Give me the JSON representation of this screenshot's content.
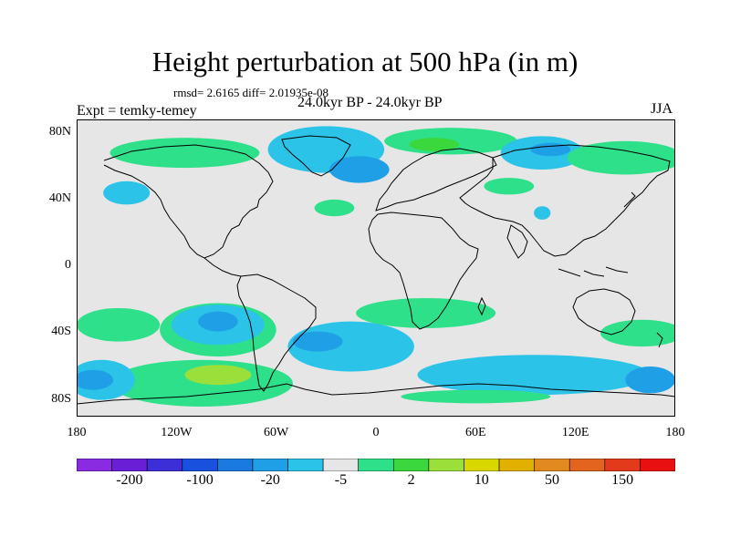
{
  "title": "Height perturbation at 500 hPa (in m)",
  "stats": "rmsd= 2.6165 diff= 2.01935e-08",
  "experiment": "Expt = temky-temey",
  "period": "24.0kyr BP - 24.0kyr BP",
  "season": "JJA",
  "lat_labels": [
    {
      "lat": 80,
      "label": "80N"
    },
    {
      "lat": 40,
      "label": "40N"
    },
    {
      "lat": 0,
      "label": "0"
    },
    {
      "lat": -40,
      "label": "40S"
    },
    {
      "lat": -80,
      "label": "80S"
    }
  ],
  "lon_labels": [
    {
      "lon": -180,
      "label": "180"
    },
    {
      "lon": -120,
      "label": "120W"
    },
    {
      "lon": -60,
      "label": "60W"
    },
    {
      "lon": 0,
      "label": "0"
    },
    {
      "lon": 60,
      "label": "60E"
    },
    {
      "lon": 120,
      "label": "120E"
    },
    {
      "lon": 180,
      "label": "180"
    }
  ],
  "colorbar": {
    "colors": [
      "#8a2be2",
      "#6a1fd6",
      "#3c2fd8",
      "#1a50de",
      "#1a7ae0",
      "#1fa0e6",
      "#2bc4e8",
      "#e6e6e6",
      "#2fe08a",
      "#3ad83c",
      "#9be03a",
      "#d8d800",
      "#e2b000",
      "#e28a1f",
      "#e2641f",
      "#e23a1a",
      "#e81010"
    ],
    "labels": [
      {
        "edge": 1,
        "text": "-200"
      },
      {
        "edge": 3,
        "text": "-100"
      },
      {
        "edge": 5,
        "text": "-20"
      },
      {
        "edge": 7,
        "text": "-5"
      },
      {
        "edge": 9,
        "text": "2"
      },
      {
        "edge": 11,
        "text": "10"
      },
      {
        "edge": 13,
        "text": "50"
      },
      {
        "edge": 15,
        "text": "150"
      }
    ]
  },
  "anomaly_regions": [
    {
      "level": "pos-low",
      "color": "#2fe08a",
      "lon": -115,
      "lat": 68,
      "rlon": 45,
      "rlat": 9
    },
    {
      "level": "pos-low",
      "color": "#2fe08a",
      "lon": -25,
      "lat": 35,
      "rlon": 12,
      "rlat": 5
    },
    {
      "level": "neg-low",
      "color": "#2bc4e8",
      "lon": -30,
      "lat": 70,
      "rlon": 35,
      "rlat": 14
    },
    {
      "level": "neg-mid",
      "color": "#1fa0e6",
      "lon": -10,
      "lat": 58,
      "rlon": 18,
      "rlat": 8
    },
    {
      "level": "pos-low",
      "color": "#2fe08a",
      "lon": 45,
      "lat": 75,
      "rlon": 40,
      "rlat": 8
    },
    {
      "level": "pos-mid",
      "color": "#3ad83c",
      "lon": 35,
      "lat": 73,
      "rlon": 15,
      "rlat": 4
    },
    {
      "level": "neg-low",
      "color": "#2bc4e8",
      "lon": 100,
      "lat": 68,
      "rlon": 25,
      "rlat": 10
    },
    {
      "level": "neg-mid",
      "color": "#1fa0e6",
      "lon": 105,
      "lat": 70,
      "rlon": 12,
      "rlat": 4
    },
    {
      "level": "pos-low",
      "color": "#2fe08a",
      "lon": 150,
      "lat": 65,
      "rlon": 35,
      "rlat": 10
    },
    {
      "level": "pos-low",
      "color": "#2fe08a",
      "lon": 80,
      "lat": 48,
      "rlon": 15,
      "rlat": 5
    },
    {
      "level": "neg-low",
      "color": "#2bc4e8",
      "lon": -150,
      "lat": 44,
      "rlon": 14,
      "rlat": 7
    },
    {
      "level": "neg-low",
      "color": "#2bc4e8",
      "lon": 100,
      "lat": 32,
      "rlon": 5,
      "rlat": 4
    },
    {
      "level": "pos-low",
      "color": "#2fe08a",
      "lon": -155,
      "lat": -35,
      "rlon": 25,
      "rlat": 10
    },
    {
      "level": "pos-low",
      "color": "#2fe08a",
      "lon": -95,
      "lat": -38,
      "rlon": 35,
      "rlat": 16
    },
    {
      "level": "neg-low",
      "color": "#2bc4e8",
      "lon": -95,
      "lat": -35,
      "rlon": 28,
      "rlat": 12
    },
    {
      "level": "neg-mid",
      "color": "#1fa0e6",
      "lon": -95,
      "lat": -33,
      "rlon": 12,
      "rlat": 6
    },
    {
      "level": "pos-low",
      "color": "#2fe08a",
      "lon": 30,
      "lat": -28,
      "rlon": 42,
      "rlat": 9
    },
    {
      "level": "neg-low",
      "color": "#2bc4e8",
      "lon": -15,
      "lat": -48,
      "rlon": 38,
      "rlat": 15
    },
    {
      "level": "neg-mid",
      "color": "#1fa0e6",
      "lon": -35,
      "lat": -45,
      "rlon": 15,
      "rlat": 6
    },
    {
      "level": "pos-low",
      "color": "#2fe08a",
      "lon": -105,
      "lat": -70,
      "rlon": 55,
      "rlat": 14
    },
    {
      "level": "pos-mid",
      "color": "#9be03a",
      "lon": -95,
      "lat": -65,
      "rlon": 20,
      "rlat": 6
    },
    {
      "level": "neg-low",
      "color": "#2bc4e8",
      "lon": -165,
      "lat": -68,
      "rlon": 20,
      "rlat": 12
    },
    {
      "level": "neg-mid",
      "color": "#1fa0e6",
      "lon": -170,
      "lat": -68,
      "rlon": 12,
      "rlat": 6
    },
    {
      "level": "neg-low",
      "color": "#2bc4e8",
      "lon": 95,
      "lat": -65,
      "rlon": 70,
      "rlat": 12
    },
    {
      "level": "neg-mid",
      "color": "#1fa0e6",
      "lon": 165,
      "lat": -68,
      "rlon": 15,
      "rlat": 8
    },
    {
      "level": "pos-low",
      "color": "#2fe08a",
      "lon": 160,
      "lat": -40,
      "rlon": 25,
      "rlat": 8
    },
    {
      "level": "pos-low",
      "color": "#2fe08a",
      "lon": 60,
      "lat": -78,
      "rlon": 45,
      "rlat": 4
    }
  ],
  "colors": {
    "background": "#e6e6e6",
    "coastline": "#000000"
  }
}
